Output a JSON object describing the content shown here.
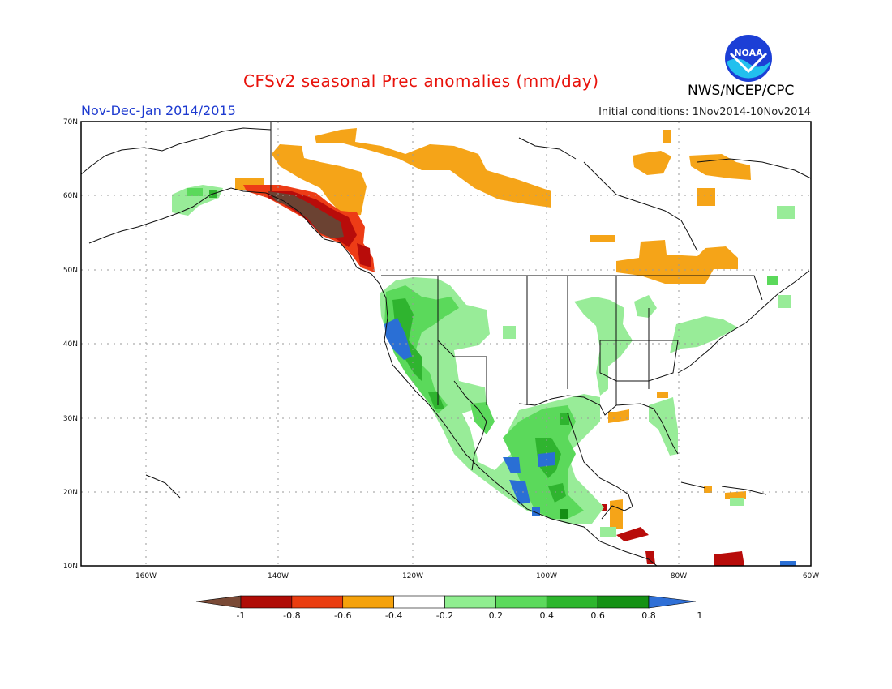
{
  "header": {
    "title": "CFSv2 seasonal Prec anomalies (mm/day)",
    "period": "Nov-Dec-Jan 2014/2015",
    "initial_conditions": "Initial conditions: 1Nov2014-10Nov2014",
    "organization": "NWS/NCEP/CPC",
    "logo_text": "NOAA"
  },
  "map": {
    "projection": "lat-lon",
    "lon_range": [
      -172,
      -60
    ],
    "lat_range": [
      10,
      70
    ],
    "lat_labels": [
      "10N",
      "20N",
      "30N",
      "40N",
      "50N",
      "60N",
      "70N"
    ],
    "lon_labels": [
      "160W",
      "140W",
      "120W",
      "100W",
      "80W",
      "60W"
    ],
    "gridlines": "dotted"
  },
  "colorbar": {
    "ticks": [
      "-1",
      "-0.8",
      "-0.6",
      "-0.4",
      "-0.2",
      "0.2",
      "0.4",
      "0.6",
      "0.8",
      "1"
    ],
    "colors": [
      "#7a4a36",
      "#b00c06",
      "#ea3d10",
      "#f5a20c",
      "#ffffff",
      "#90ee90",
      "#5cda5c",
      "#2db62d",
      "#159215",
      "#2f6fd6"
    ]
  },
  "anomaly_colors": {
    "very_dry": "#6b4232",
    "dry3": "#b80c0a",
    "dry2": "#ed3c16",
    "dry1": "#f5a418",
    "wet1": "#98ec98",
    "wet2": "#5bd95b",
    "wet3": "#2fb42f",
    "wet4": "#168f16",
    "very_wet": "#2a6fd5"
  },
  "region_labels": {
    "alaska_panhandle": "dry",
    "canada_north": "dry",
    "california": "wet",
    "mexico": "wet"
  }
}
